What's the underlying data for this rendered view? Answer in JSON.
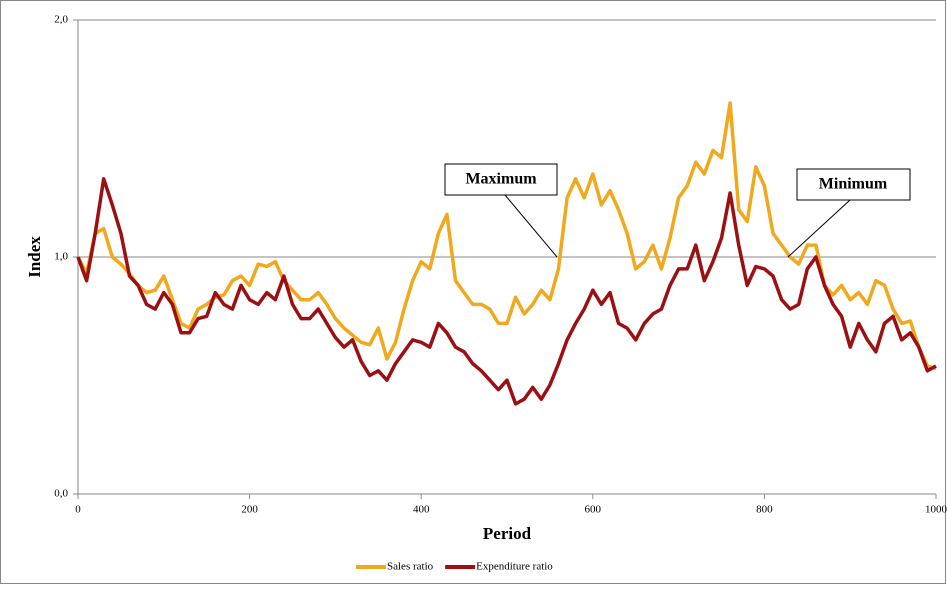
{
  "chart_data": {
    "type": "line",
    "x_label": "Period",
    "y_label": "Index",
    "x": [
      0,
      10,
      20,
      30,
      40,
      50,
      60,
      70,
      80,
      90,
      100,
      110,
      120,
      130,
      140,
      150,
      160,
      170,
      180,
      190,
      200,
      210,
      220,
      230,
      240,
      250,
      260,
      270,
      280,
      290,
      300,
      310,
      320,
      330,
      340,
      350,
      360,
      370,
      380,
      390,
      400,
      410,
      420,
      430,
      440,
      450,
      460,
      470,
      480,
      490,
      500,
      510,
      520,
      530,
      540,
      550,
      560,
      570,
      580,
      590,
      600,
      610,
      620,
      630,
      640,
      650,
      660,
      670,
      680,
      690,
      700,
      710,
      720,
      730,
      740,
      750,
      760,
      770,
      780,
      790,
      800,
      810,
      820,
      830,
      840,
      850,
      860,
      870,
      880,
      890,
      900,
      910,
      920,
      930,
      940,
      950,
      960,
      970,
      980,
      990,
      1000
    ],
    "series": [
      {
        "name": "Sales ratio",
        "color": "#f0a81c",
        "values": [
          1.0,
          0.93,
          1.1,
          1.12,
          1.0,
          0.97,
          0.93,
          0.88,
          0.85,
          0.86,
          0.92,
          0.82,
          0.72,
          0.7,
          0.78,
          0.8,
          0.83,
          0.84,
          0.9,
          0.92,
          0.88,
          0.97,
          0.96,
          0.98,
          0.9,
          0.86,
          0.82,
          0.82,
          0.85,
          0.8,
          0.74,
          0.7,
          0.67,
          0.64,
          0.63,
          0.7,
          0.57,
          0.64,
          0.78,
          0.9,
          0.98,
          0.95,
          1.1,
          1.18,
          0.9,
          0.85,
          0.8,
          0.8,
          0.78,
          0.72,
          0.72,
          0.83,
          0.76,
          0.8,
          0.86,
          0.82,
          0.95,
          1.25,
          1.33,
          1.25,
          1.35,
          1.22,
          1.28,
          1.2,
          1.1,
          0.95,
          0.98,
          1.05,
          0.95,
          1.08,
          1.25,
          1.3,
          1.4,
          1.35,
          1.45,
          1.42,
          1.65,
          1.2,
          1.15,
          1.38,
          1.3,
          1.1,
          1.05,
          1.0,
          0.97,
          1.05,
          1.05,
          0.88,
          0.84,
          0.88,
          0.82,
          0.85,
          0.8,
          0.9,
          0.88,
          0.78,
          0.72,
          0.73,
          0.62,
          0.54,
          0.53
        ]
      },
      {
        "name": "Expenditure ratio",
        "color": "#9c0f12",
        "values": [
          1.0,
          0.9,
          1.1,
          1.33,
          1.22,
          1.1,
          0.92,
          0.88,
          0.8,
          0.78,
          0.85,
          0.8,
          0.68,
          0.68,
          0.74,
          0.75,
          0.85,
          0.8,
          0.78,
          0.88,
          0.82,
          0.8,
          0.85,
          0.82,
          0.92,
          0.8,
          0.74,
          0.74,
          0.78,
          0.72,
          0.66,
          0.62,
          0.65,
          0.56,
          0.5,
          0.52,
          0.48,
          0.55,
          0.6,
          0.65,
          0.64,
          0.62,
          0.72,
          0.68,
          0.62,
          0.6,
          0.55,
          0.52,
          0.48,
          0.44,
          0.48,
          0.38,
          0.4,
          0.45,
          0.4,
          0.46,
          0.55,
          0.65,
          0.72,
          0.78,
          0.86,
          0.8,
          0.85,
          0.72,
          0.7,
          0.65,
          0.72,
          0.76,
          0.78,
          0.88,
          0.95,
          0.95,
          1.05,
          0.9,
          0.98,
          1.08,
          1.27,
          1.05,
          0.88,
          0.96,
          0.95,
          0.92,
          0.82,
          0.78,
          0.8,
          0.95,
          1.0,
          0.88,
          0.8,
          0.75,
          0.62,
          0.72,
          0.65,
          0.6,
          0.72,
          0.75,
          0.65,
          0.68,
          0.62,
          0.52,
          0.54
        ]
      }
    ],
    "xlim": [
      0,
      1000
    ],
    "xticks": [
      0,
      200,
      400,
      600,
      800,
      1000
    ],
    "ylim": [
      0,
      2
    ],
    "yticks": [
      {
        "value": 0,
        "label": "0,0"
      },
      {
        "value": 1,
        "label": "1,0"
      },
      {
        "value": 2,
        "label": "2,0"
      }
    ],
    "grid": true,
    "legend": "bottom",
    "annotations": [
      "Maximum",
      "Minimum"
    ]
  }
}
